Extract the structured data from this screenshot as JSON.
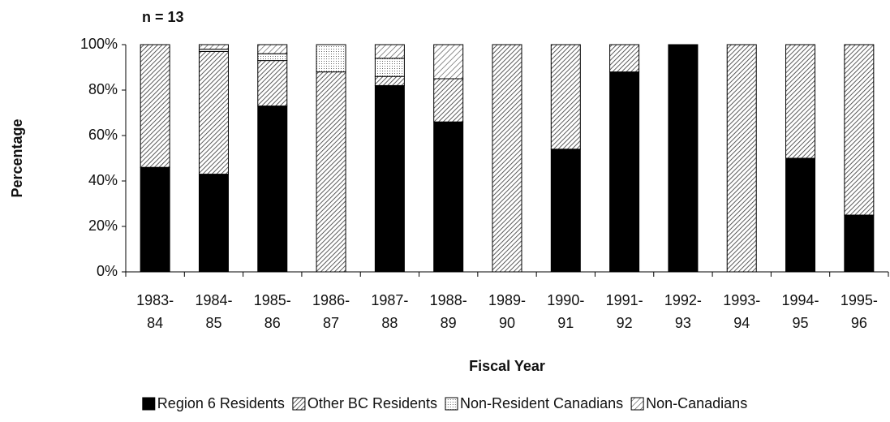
{
  "chart_data": {
    "type": "stacked_bar",
    "title": "n = 13",
    "xlabel": "Fiscal Year",
    "ylabel": "Percentage",
    "categories": [
      "1983-84",
      "1984-85",
      "1985-86",
      "1986-87",
      "1987-88",
      "1988-89",
      "1989-90",
      "1990-91",
      "1991-92",
      "1992-93",
      "1993-94",
      "1994-95",
      "1995-96"
    ],
    "series": [
      {
        "name": "Region 6 Residents",
        "color": "#000000",
        "values": [
          46,
          43,
          73,
          0,
          82,
          66,
          0,
          54,
          88,
          100,
          0,
          50,
          25
        ]
      },
      {
        "name": "Other BC Residents",
        "color": "#333333",
        "values": [
          54,
          54,
          20,
          88,
          4,
          19,
          100,
          46,
          12,
          0,
          100,
          50,
          75
        ]
      },
      {
        "name": "Non-Resident Canadians",
        "color": "#666666",
        "values": [
          0,
          1,
          3,
          12,
          8,
          0,
          0,
          0,
          0,
          0,
          0,
          0,
          0
        ]
      },
      {
        "name": "Non-Canadians",
        "color": "#444444",
        "values": [
          0,
          2,
          4,
          0,
          6,
          15,
          0,
          0,
          0,
          0,
          0,
          0,
          0
        ]
      }
    ],
    "ylim": [
      0,
      100
    ],
    "yticks": [
      {
        "value": 0,
        "label": "0%"
      },
      {
        "value": 20,
        "label": "20%"
      },
      {
        "value": 40,
        "label": "40%"
      },
      {
        "value": 60,
        "label": "60%"
      },
      {
        "value": 80,
        "label": "80%"
      },
      {
        "value": 100,
        "label": "100%"
      }
    ],
    "legend": "bottom"
  }
}
